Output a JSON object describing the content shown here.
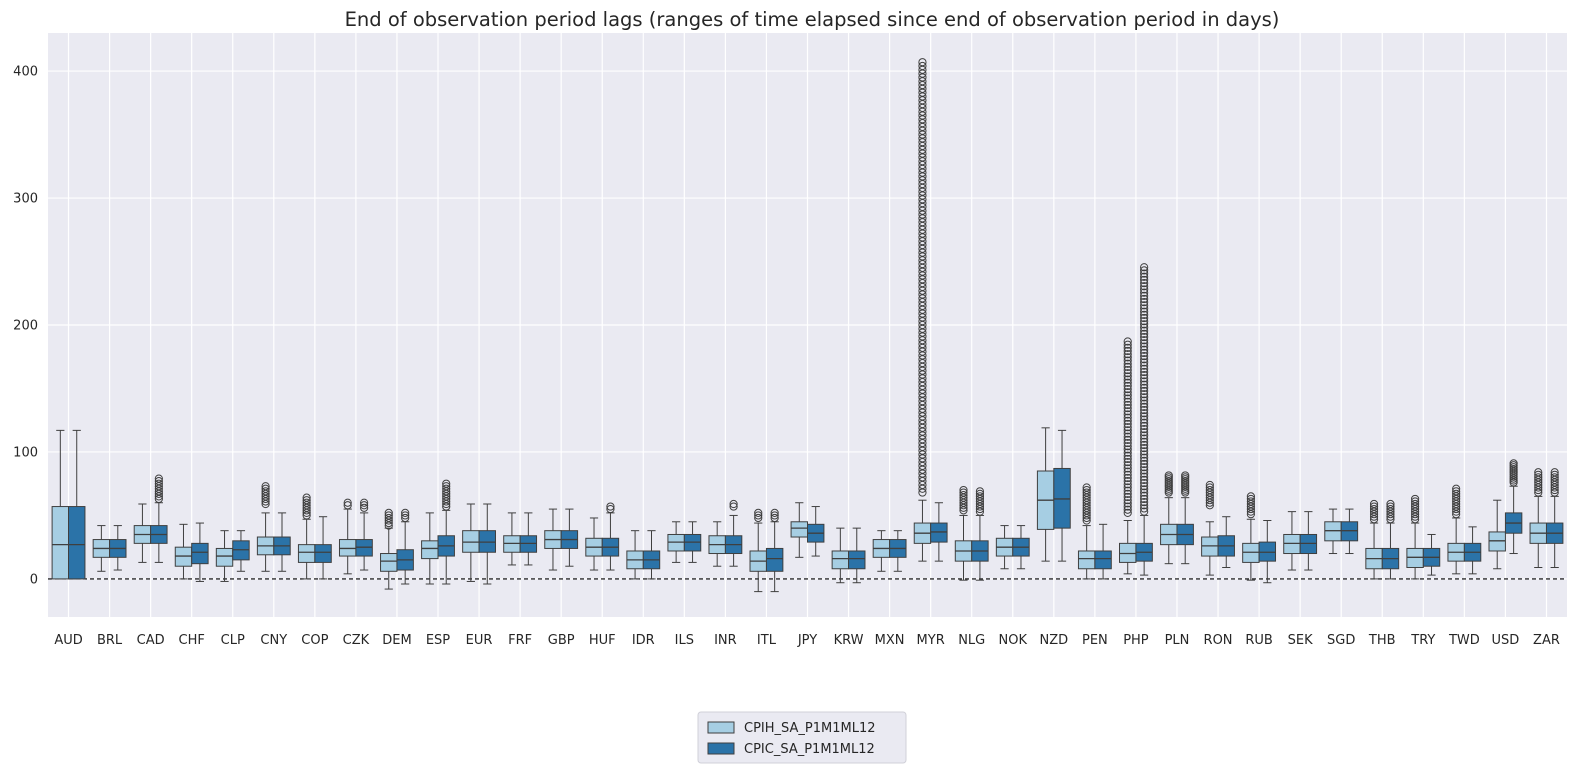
{
  "chart_data": {
    "type": "box",
    "title": "End of observation period lags (ranges of time elapsed since end of observation period in days)",
    "xlabel": "",
    "ylabel": "",
    "ylim": [
      -30,
      430
    ],
    "yticks": [
      0,
      100,
      200,
      300,
      400
    ],
    "grid": true,
    "legend_position": "bottom-center",
    "reference_line": {
      "y": 0,
      "style": "dashed",
      "color": "#000000"
    },
    "colors": {
      "background": "#eaeaf2",
      "grid": "#ffffff",
      "line": "#3f3f3f",
      "CPIH_SA_P1M1ML12": "#a6cee3",
      "CPIC_SA_P1M1ML12": "#2b73a8"
    },
    "categories": [
      "AUD",
      "BRL",
      "CAD",
      "CHF",
      "CLP",
      "CNY",
      "COP",
      "CZK",
      "DEM",
      "ESP",
      "EUR",
      "FRF",
      "GBP",
      "HUF",
      "IDR",
      "ILS",
      "INR",
      "ITL",
      "JPY",
      "KRW",
      "MXN",
      "MYR",
      "NLG",
      "NOK",
      "NZD",
      "PEN",
      "PHP",
      "PLN",
      "RON",
      "RUB",
      "SEK",
      "SGD",
      "THB",
      "TRY",
      "TWD",
      "USD",
      "ZAR"
    ],
    "series": [
      {
        "name": "CPIH_SA_P1M1ML12",
        "boxes": [
          {
            "whislo": 0,
            "q1": 0,
            "med": 27,
            "q3": 57,
            "whishi": 117,
            "fliers": []
          },
          {
            "whislo": 6,
            "q1": 17,
            "med": 24,
            "q3": 31,
            "whishi": 42,
            "fliers": []
          },
          {
            "whislo": 13,
            "q1": 28,
            "med": 35,
            "q3": 42,
            "whishi": 59,
            "fliers": []
          },
          {
            "whislo": 0,
            "q1": 10,
            "med": 18,
            "q3": 25,
            "whishi": 43,
            "fliers": []
          },
          {
            "whislo": -2,
            "q1": 10,
            "med": 18,
            "q3": 24,
            "whishi": 38,
            "fliers": []
          },
          {
            "whislo": 6,
            "q1": 19,
            "med": 26,
            "q3": 33,
            "whishi": 52,
            "fliers": [
              {
                "from": 59,
                "to": 73,
                "step": 2
              }
            ]
          },
          {
            "whislo": 0,
            "q1": 13,
            "med": 21,
            "q3": 27,
            "whishi": 47,
            "fliers": [
              {
                "from": 50,
                "to": 65,
                "step": 2
              }
            ]
          },
          {
            "whislo": 4,
            "q1": 18,
            "med": 24,
            "q3": 31,
            "whishi": 55,
            "fliers": [
              {
                "from": 58,
                "to": 60,
                "step": 2
              }
            ]
          },
          {
            "whislo": -8,
            "q1": 6,
            "med": 14,
            "q3": 20,
            "whishi": 40,
            "fliers": [
              {
                "from": 42,
                "to": 52,
                "step": 2
              }
            ]
          },
          {
            "whislo": -4,
            "q1": 16,
            "med": 24,
            "q3": 30,
            "whishi": 52,
            "fliers": []
          },
          {
            "whislo": -2,
            "q1": 21,
            "med": 29,
            "q3": 38,
            "whishi": 59,
            "fliers": []
          },
          {
            "whislo": 11,
            "q1": 21,
            "med": 28,
            "q3": 34,
            "whishi": 52,
            "fliers": []
          },
          {
            "whislo": 7,
            "q1": 24,
            "med": 31,
            "q3": 38,
            "whishi": 55,
            "fliers": []
          },
          {
            "whislo": 7,
            "q1": 18,
            "med": 25,
            "q3": 32,
            "whishi": 48,
            "fliers": []
          },
          {
            "whislo": 0,
            "q1": 8,
            "med": 15,
            "q3": 22,
            "whishi": 38,
            "fliers": []
          },
          {
            "whislo": 13,
            "q1": 22,
            "med": 29,
            "q3": 35,
            "whishi": 45,
            "fliers": []
          },
          {
            "whislo": 10,
            "q1": 20,
            "med": 27,
            "q3": 34,
            "whishi": 45,
            "fliers": []
          },
          {
            "whislo": -10,
            "q1": 6,
            "med": 14,
            "q3": 22,
            "whishi": 44,
            "fliers": [
              {
                "from": 48,
                "to": 53,
                "step": 2
              }
            ]
          },
          {
            "whislo": 17,
            "q1": 33,
            "med": 40,
            "q3": 45,
            "whishi": 60,
            "fliers": []
          },
          {
            "whislo": -3,
            "q1": 8,
            "med": 16,
            "q3": 22,
            "whishi": 40,
            "fliers": []
          },
          {
            "whislo": 6,
            "q1": 17,
            "med": 24,
            "q3": 31,
            "whishi": 38,
            "fliers": []
          },
          {
            "whislo": 14,
            "q1": 28,
            "med": 36,
            "q3": 44,
            "whishi": 62,
            "fliers": [
              {
                "from": 68,
                "to": 408,
                "step": 3
              }
            ]
          },
          {
            "whislo": -1,
            "q1": 14,
            "med": 22,
            "q3": 30,
            "whishi": 50,
            "fliers": [
              {
                "from": 54,
                "to": 70,
                "step": 2
              }
            ]
          },
          {
            "whislo": 8,
            "q1": 18,
            "med": 25,
            "q3": 32,
            "whishi": 42,
            "fliers": []
          },
          {
            "whislo": 14,
            "q1": 39,
            "med": 62,
            "q3": 85,
            "whishi": 119,
            "fliers": []
          },
          {
            "whislo": 0,
            "q1": 8,
            "med": 16,
            "q3": 22,
            "whishi": 42,
            "fliers": [
              {
                "from": 46,
                "to": 73,
                "step": 2
              }
            ]
          },
          {
            "whislo": 4,
            "q1": 13,
            "med": 20,
            "q3": 28,
            "whishi": 46,
            "fliers": [
              {
                "from": 52,
                "to": 187,
                "step": 2.5
              }
            ]
          },
          {
            "whislo": 12,
            "q1": 27,
            "med": 35,
            "q3": 43,
            "whishi": 64,
            "fliers": [
              {
                "from": 68,
                "to": 82,
                "step": 1.5
              }
            ]
          },
          {
            "whislo": 3,
            "q1": 18,
            "med": 26,
            "q3": 33,
            "whishi": 45,
            "fliers": [
              {
                "from": 58,
                "to": 74,
                "step": 2
              }
            ]
          },
          {
            "whislo": -1,
            "q1": 13,
            "med": 21,
            "q3": 28,
            "whishi": 47,
            "fliers": [
              {
                "from": 51,
                "to": 66,
                "step": 2
              }
            ]
          },
          {
            "whislo": 7,
            "q1": 20,
            "med": 28,
            "q3": 35,
            "whishi": 53,
            "fliers": []
          },
          {
            "whislo": 20,
            "q1": 30,
            "med": 38,
            "q3": 45,
            "whishi": 55,
            "fliers": []
          },
          {
            "whislo": 0,
            "q1": 8,
            "med": 16,
            "q3": 24,
            "whishi": 44,
            "fliers": [
              {
                "from": 47,
                "to": 59,
                "step": 2
              }
            ]
          },
          {
            "whislo": 0,
            "q1": 9,
            "med": 17,
            "q3": 24,
            "whishi": 44,
            "fliers": [
              {
                "from": 47,
                "to": 63,
                "step": 2
              }
            ]
          },
          {
            "whislo": 4,
            "q1": 14,
            "med": 21,
            "q3": 28,
            "whishi": 48,
            "fliers": [
              {
                "from": 51,
                "to": 72,
                "step": 2
              }
            ]
          },
          {
            "whislo": 8,
            "q1": 22,
            "med": 30,
            "q3": 37,
            "whishi": 62,
            "fliers": []
          },
          {
            "whislo": 9,
            "q1": 28,
            "med": 36,
            "q3": 44,
            "whishi": 65,
            "fliers": [
              {
                "from": 68,
                "to": 84,
                "step": 2
              }
            ]
          }
        ]
      },
      {
        "name": "CPIC_SA_P1M1ML12",
        "boxes": [
          {
            "whislo": 0,
            "q1": 0,
            "med": 27,
            "q3": 57,
            "whishi": 117,
            "fliers": []
          },
          {
            "whislo": 7,
            "q1": 17,
            "med": 24,
            "q3": 31,
            "whishi": 42,
            "fliers": []
          },
          {
            "whislo": 13,
            "q1": 28,
            "med": 35,
            "q3": 42,
            "whishi": 60,
            "fliers": [
              {
                "from": 63,
                "to": 79,
                "step": 2
              }
            ]
          },
          {
            "whislo": -2,
            "q1": 12,
            "med": 21,
            "q3": 28,
            "whishi": 44,
            "fliers": []
          },
          {
            "whislo": 6,
            "q1": 15,
            "med": 23,
            "q3": 30,
            "whishi": 38,
            "fliers": []
          },
          {
            "whislo": 6,
            "q1": 19,
            "med": 26,
            "q3": 33,
            "whishi": 52,
            "fliers": []
          },
          {
            "whislo": 0,
            "q1": 13,
            "med": 21,
            "q3": 27,
            "whishi": 49,
            "fliers": []
          },
          {
            "whislo": 7,
            "q1": 18,
            "med": 25,
            "q3": 31,
            "whishi": 52,
            "fliers": [
              {
                "from": 56,
                "to": 60,
                "step": 2
              }
            ]
          },
          {
            "whislo": -4,
            "q1": 7,
            "med": 15,
            "q3": 23,
            "whishi": 45,
            "fliers": [
              {
                "from": 48,
                "to": 52,
                "step": 2
              }
            ]
          },
          {
            "whislo": -4,
            "q1": 18,
            "med": 26,
            "q3": 34,
            "whishi": 54,
            "fliers": [
              {
                "from": 57,
                "to": 76,
                "step": 2
              }
            ]
          },
          {
            "whislo": -4,
            "q1": 21,
            "med": 29,
            "q3": 38,
            "whishi": 59,
            "fliers": []
          },
          {
            "whislo": 11,
            "q1": 21,
            "med": 28,
            "q3": 34,
            "whishi": 52,
            "fliers": []
          },
          {
            "whislo": 10,
            "q1": 24,
            "med": 31,
            "q3": 38,
            "whishi": 55,
            "fliers": []
          },
          {
            "whislo": 7,
            "q1": 18,
            "med": 25,
            "q3": 32,
            "whishi": 52,
            "fliers": [
              {
                "from": 55,
                "to": 57,
                "step": 2
              }
            ]
          },
          {
            "whislo": 0,
            "q1": 8,
            "med": 15,
            "q3": 22,
            "whishi": 38,
            "fliers": []
          },
          {
            "whislo": 13,
            "q1": 22,
            "med": 29,
            "q3": 35,
            "whishi": 45,
            "fliers": []
          },
          {
            "whislo": 10,
            "q1": 20,
            "med": 27,
            "q3": 34,
            "whishi": 50,
            "fliers": [
              {
                "from": 57,
                "to": 59,
                "step": 2
              }
            ]
          },
          {
            "whislo": -10,
            "q1": 6,
            "med": 16,
            "q3": 24,
            "whishi": 45,
            "fliers": [
              {
                "from": 48,
                "to": 53,
                "step": 2
              }
            ]
          },
          {
            "whislo": 18,
            "q1": 29,
            "med": 36,
            "q3": 43,
            "whishi": 57,
            "fliers": []
          },
          {
            "whislo": -3,
            "q1": 8,
            "med": 16,
            "q3": 22,
            "whishi": 40,
            "fliers": []
          },
          {
            "whislo": 6,
            "q1": 17,
            "med": 24,
            "q3": 31,
            "whishi": 38,
            "fliers": []
          },
          {
            "whislo": 14,
            "q1": 29,
            "med": 37,
            "q3": 44,
            "whishi": 60,
            "fliers": []
          },
          {
            "whislo": -1,
            "q1": 14,
            "med": 22,
            "q3": 30,
            "whishi": 50,
            "fliers": [
              {
                "from": 53,
                "to": 70,
                "step": 2
              }
            ]
          },
          {
            "whislo": 8,
            "q1": 18,
            "med": 25,
            "q3": 32,
            "whishi": 42,
            "fliers": []
          },
          {
            "whislo": 14,
            "q1": 40,
            "med": 63,
            "q3": 87,
            "whishi": 117,
            "fliers": []
          },
          {
            "whislo": 0,
            "q1": 8,
            "med": 16,
            "q3": 22,
            "whishi": 43,
            "fliers": []
          },
          {
            "whislo": 3,
            "q1": 14,
            "med": 21,
            "q3": 28,
            "whishi": 50,
            "fliers": [
              {
                "from": 53,
                "to": 247,
                "step": 2.5
              }
            ]
          },
          {
            "whislo": 12,
            "q1": 27,
            "med": 35,
            "q3": 43,
            "whishi": 64,
            "fliers": [
              {
                "from": 68,
                "to": 82,
                "step": 1.5
              }
            ]
          },
          {
            "whislo": 9,
            "q1": 18,
            "med": 26,
            "q3": 34,
            "whishi": 49,
            "fliers": []
          },
          {
            "whislo": -3,
            "q1": 14,
            "med": 21,
            "q3": 29,
            "whishi": 46,
            "fliers": []
          },
          {
            "whislo": 7,
            "q1": 20,
            "med": 28,
            "q3": 35,
            "whishi": 53,
            "fliers": []
          },
          {
            "whislo": 20,
            "q1": 30,
            "med": 38,
            "q3": 45,
            "whishi": 55,
            "fliers": []
          },
          {
            "whislo": 0,
            "q1": 8,
            "med": 16,
            "q3": 24,
            "whishi": 44,
            "fliers": [
              {
                "from": 47,
                "to": 59,
                "step": 2
              }
            ]
          },
          {
            "whislo": 3,
            "q1": 10,
            "med": 17,
            "q3": 24,
            "whishi": 35,
            "fliers": []
          },
          {
            "whislo": 4,
            "q1": 14,
            "med": 21,
            "q3": 28,
            "whishi": 41,
            "fliers": []
          },
          {
            "whislo": 20,
            "q1": 36,
            "med": 44,
            "q3": 52,
            "whishi": 73,
            "fliers": [
              {
                "from": 76,
                "to": 91,
                "step": 1.5
              }
            ]
          },
          {
            "whislo": 9,
            "q1": 28,
            "med": 36,
            "q3": 44,
            "whishi": 65,
            "fliers": [
              {
                "from": 68,
                "to": 84,
                "step": 2
              }
            ]
          }
        ]
      }
    ]
  }
}
